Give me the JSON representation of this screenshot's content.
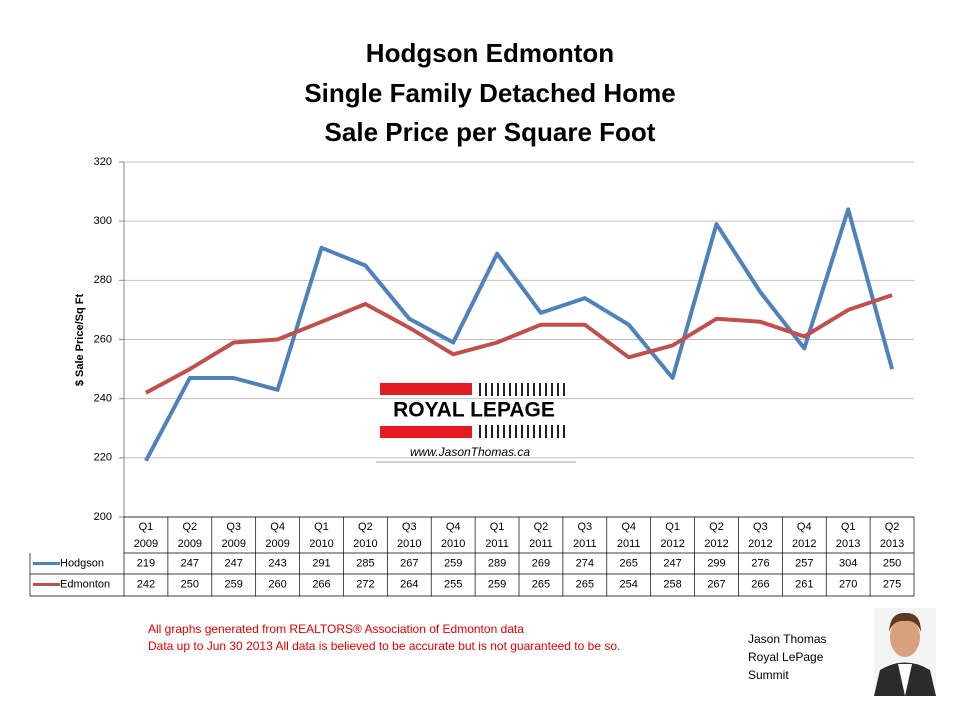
{
  "chart_data": {
    "type": "line",
    "title_lines": [
      "Hodgson Edmonton",
      "Single Family Detached Home",
      "Sale Price per Square Foot"
    ],
    "y_label": "$ Sale Price/Sq Ft",
    "categories": [
      [
        "Q1",
        "2009"
      ],
      [
        "Q2",
        "2009"
      ],
      [
        "Q3",
        "2009"
      ],
      [
        "Q4",
        "2009"
      ],
      [
        "Q1",
        "2010"
      ],
      [
        "Q2",
        "2010"
      ],
      [
        "Q3",
        "2010"
      ],
      [
        "Q4",
        "2010"
      ],
      [
        "Q1",
        "2011"
      ],
      [
        "Q2",
        "2011"
      ],
      [
        "Q3",
        "2011"
      ],
      [
        "Q4",
        "2011"
      ],
      [
        "Q1",
        "2012"
      ],
      [
        "Q2",
        "2012"
      ],
      [
        "Q3",
        "2012"
      ],
      [
        "Q4",
        "2012"
      ],
      [
        "Q1",
        "2013"
      ],
      [
        "Q2",
        "2013"
      ]
    ],
    "series": [
      {
        "name": "Hodgson",
        "color": "#4f81bd",
        "values": [
          219,
          247,
          247,
          243,
          291,
          285,
          267,
          259,
          289,
          269,
          274,
          265,
          247,
          299,
          276,
          257,
          304,
          250
        ]
      },
      {
        "name": "Edmonton",
        "color": "#c0504d",
        "values": [
          242,
          250,
          259,
          260,
          266,
          272,
          264,
          255,
          259,
          265,
          265,
          254,
          258,
          267,
          266,
          261,
          270,
          275
        ]
      }
    ],
    "ylim": [
      200,
      320
    ],
    "yticks": [
      200,
      220,
      240,
      260,
      280,
      300,
      320
    ],
    "grid": true
  },
  "logo": {
    "brand": "ROYAL LEPAGE",
    "website": "www.JasonThomas.ca"
  },
  "footer": {
    "notes": [
      "All graphs generated from REALTORS® Association of Edmonton data",
      "Data up to  Jun 30 2013  All data is believed to be accurate but is not guaranteed to be so."
    ],
    "signature": [
      "Jason Thomas",
      "Royal LePage",
      "Summit"
    ]
  }
}
